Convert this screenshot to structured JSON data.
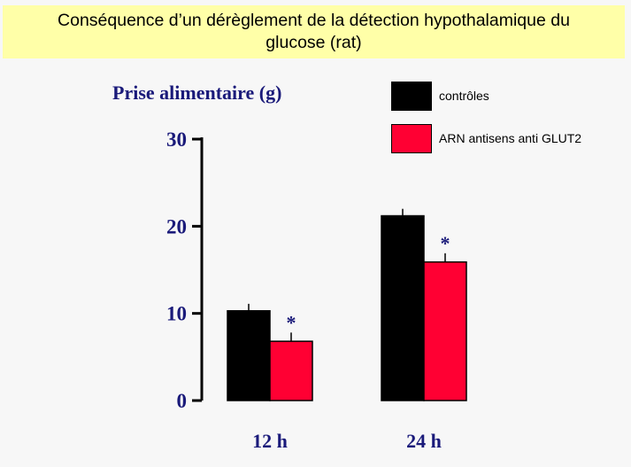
{
  "header": {
    "title_line1": "Conséquence d’un dérèglement de la détection hypothalamique du",
    "title_line2": "glucose (rat)"
  },
  "chart_data": {
    "type": "bar",
    "ylabel": "Prise alimentaire (g)",
    "xlabel": "",
    "categories": [
      "12 h",
      "24 h"
    ],
    "ylim": [
      0,
      30
    ],
    "yticks": [
      0,
      10,
      20,
      30
    ],
    "grid": false,
    "legend_position": "top-right",
    "series": [
      {
        "name": "contrôles",
        "color": "#000000",
        "values": [
          10.3,
          21.2
        ],
        "errors": [
          0.8,
          0.8
        ],
        "significant": [
          false,
          false
        ]
      },
      {
        "name": "ARN antisens anti GLUT2",
        "color": "#ff0033",
        "values": [
          6.8,
          15.9
        ],
        "errors": [
          1.0,
          1.0
        ],
        "significant": [
          true,
          true
        ]
      }
    ],
    "significance_marker": "*"
  }
}
